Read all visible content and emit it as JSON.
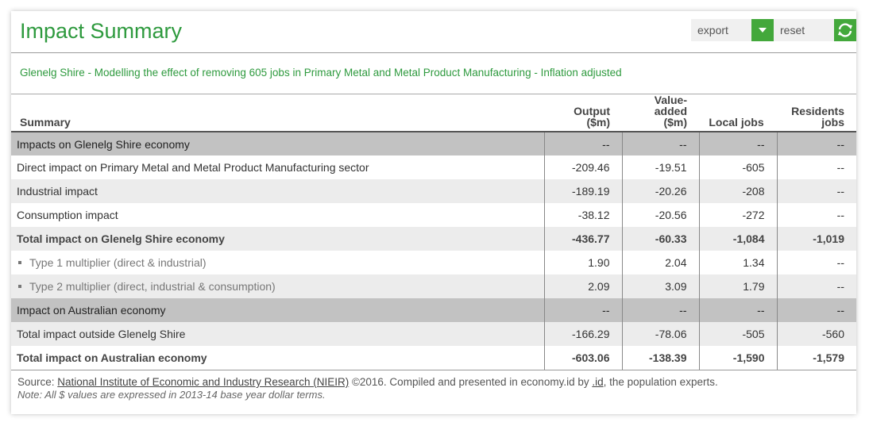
{
  "header": {
    "title": "Impact Summary",
    "export_label": "export",
    "reset_label": "reset",
    "accent_color": "#43a83b",
    "export_icon": "caret-down-icon",
    "reset_icon": "refresh-icon"
  },
  "subtitle": "Glenelg Shire - Modelling the effect of removing 605 jobs in Primary Metal and Metal Product Manufacturing - Inflation adjusted",
  "table": {
    "headers": {
      "summary": "Summary",
      "output_line1": "Output",
      "output_line2": "($m)",
      "value_line1": "Value-",
      "value_line2": "added ($m)",
      "local": "Local jobs",
      "res_line1": "Residents",
      "res_line2": "jobs"
    },
    "rows": [
      {
        "label": "Impacts on Glenelg Shire economy",
        "output": "--",
        "value": "--",
        "local": "--",
        "res": "--"
      },
      {
        "label": "Direct impact on Primary Metal and Metal Product Manufacturing sector",
        "output": "-209.46",
        "value": "-19.51",
        "local": "-605",
        "res": "--"
      },
      {
        "label": "Industrial impact",
        "output": "-189.19",
        "value": "-20.26",
        "local": "-208",
        "res": "--"
      },
      {
        "label": "Consumption impact",
        "output": "-38.12",
        "value": "-20.56",
        "local": "-272",
        "res": "--"
      },
      {
        "label": "Total impact on Glenelg Shire economy",
        "output": "-436.77",
        "value": "-60.33",
        "local": "-1,084",
        "res": "-1,019"
      },
      {
        "label": "Type 1 multiplier (direct & industrial)",
        "output": "1.90",
        "value": "2.04",
        "local": "1.34",
        "res": "--"
      },
      {
        "label": "Type 2 multiplier (direct, industrial & consumption)",
        "output": "2.09",
        "value": "3.09",
        "local": "1.79",
        "res": "--"
      },
      {
        "label": "Impact on Australian economy",
        "output": "--",
        "value": "--",
        "local": "--",
        "res": "--"
      },
      {
        "label": "Total impact outside Glenelg Shire",
        "output": "-166.29",
        "value": "-78.06",
        "local": "-505",
        "res": "-560"
      },
      {
        "label": "Total impact on Australian economy",
        "output": "-603.06",
        "value": "-138.39",
        "local": "-1,590",
        "res": "-1,579"
      }
    ]
  },
  "footer": {
    "source_prefix": "Source: ",
    "source_link": "National Institute of Economic and Industry Research (NIEIR)",
    "source_mid": " ©2016. Compiled and presented in economy.id by ",
    "id_link": ".id",
    "source_suffix": ", the population experts.",
    "note": "Note: All $ values are expressed in 2013-14 base year dollar terms."
  }
}
